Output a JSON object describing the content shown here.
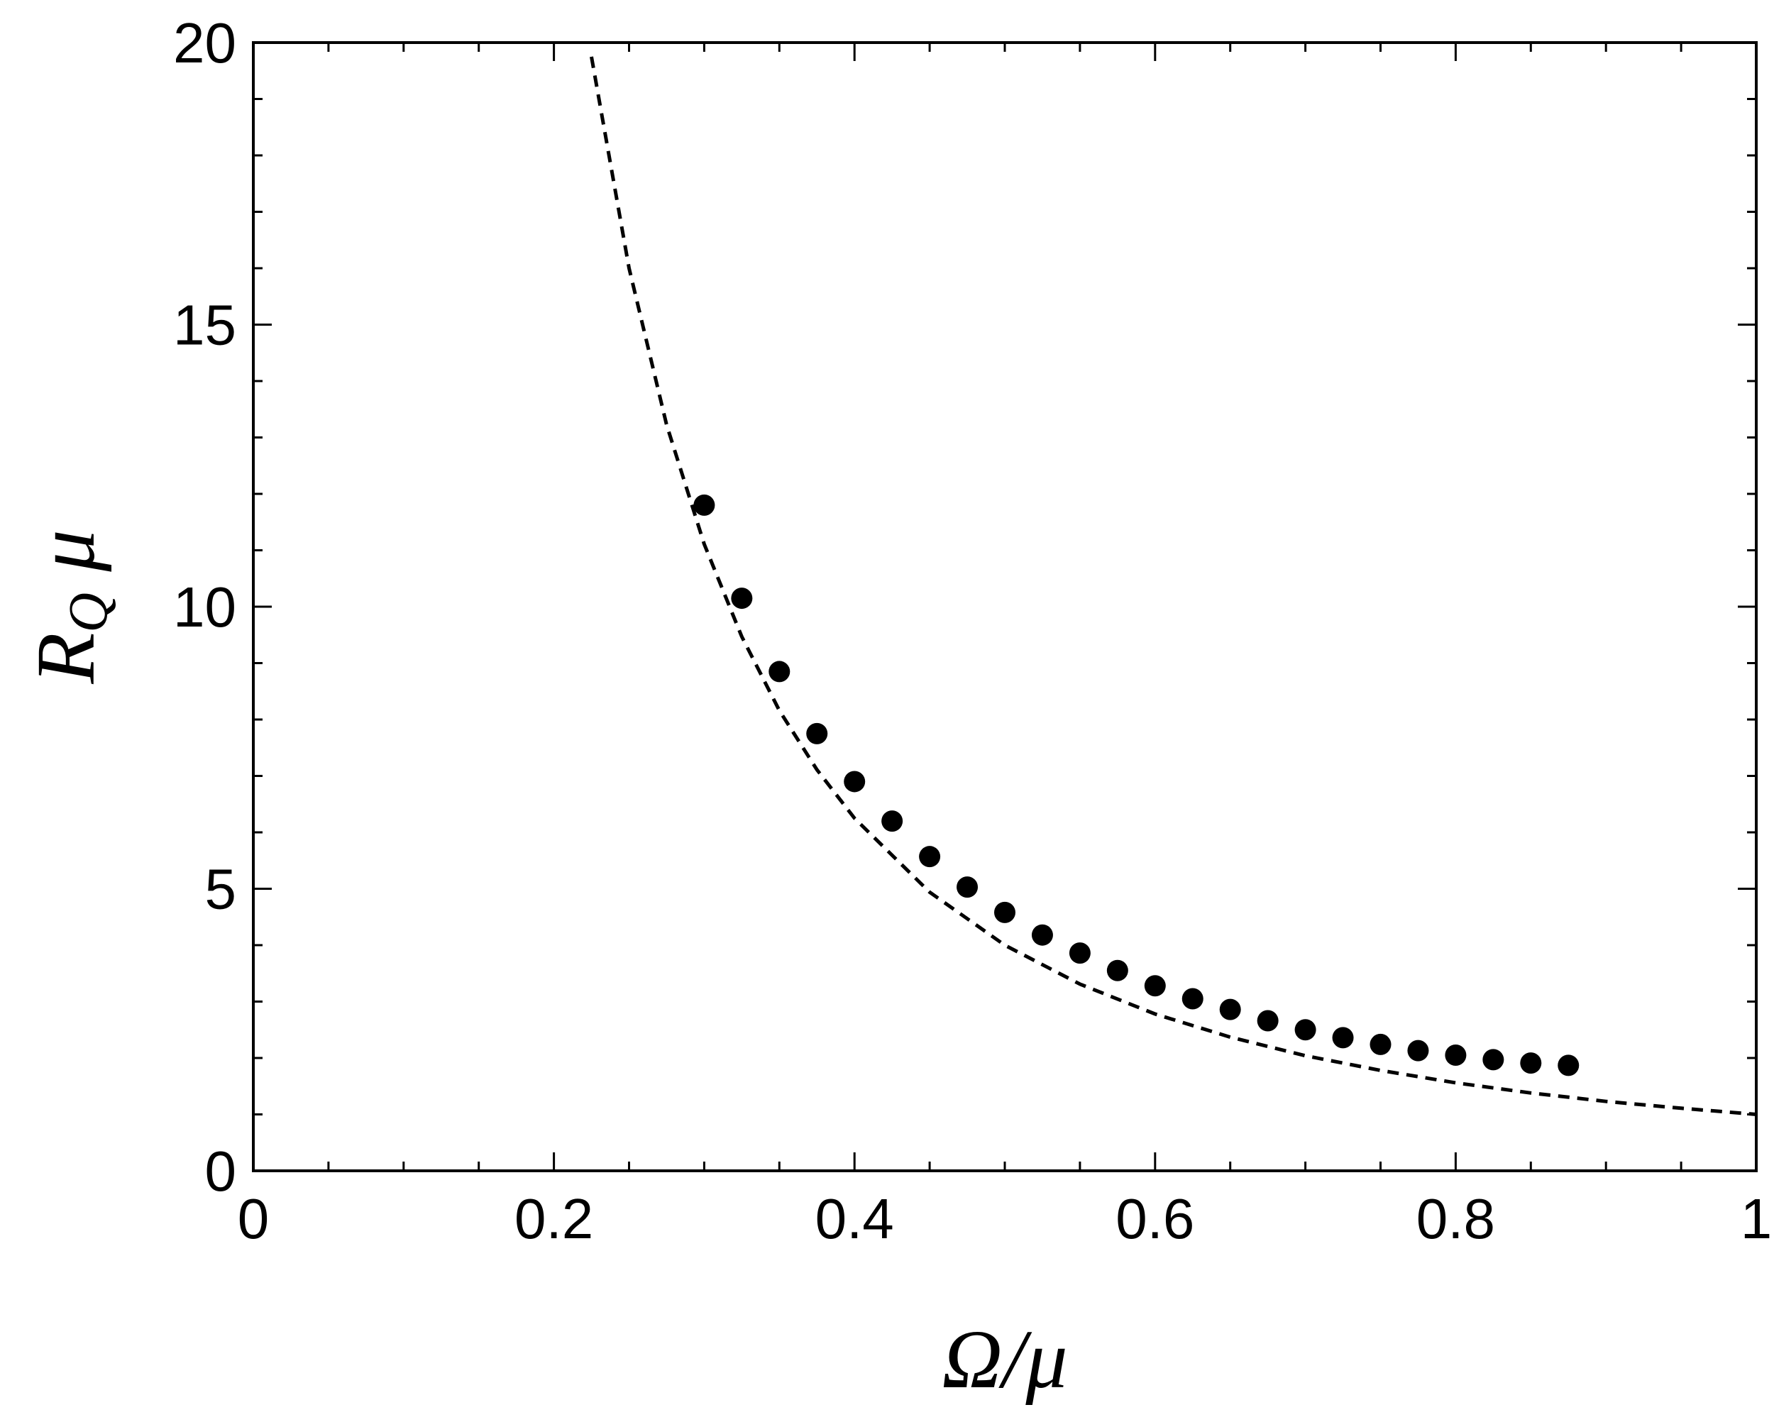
{
  "chart_data": {
    "type": "scatter",
    "title": "",
    "xlabel": "Ω/μ",
    "ylabel_main": "R",
    "ylabel_sub": "Q",
    "ylabel_tail": " μ",
    "xlim": [
      0,
      1
    ],
    "ylim": [
      0,
      20
    ],
    "x_ticks": [
      0,
      0.2,
      0.4,
      0.6,
      0.8,
      1
    ],
    "x_tick_labels": [
      "0",
      "0.2",
      "0.4",
      "0.6",
      "0.8",
      "1"
    ],
    "y_ticks": [
      0,
      5,
      10,
      15,
      20
    ],
    "y_tick_labels": [
      "0",
      "5",
      "10",
      "15",
      "20"
    ],
    "grid": false,
    "series": [
      {
        "style": "markers",
        "color": "#000000",
        "x": [
          0.3,
          0.325,
          0.35,
          0.375,
          0.4,
          0.425,
          0.45,
          0.475,
          0.5,
          0.525,
          0.55,
          0.575,
          0.6,
          0.625,
          0.65,
          0.675,
          0.7,
          0.725,
          0.75,
          0.775,
          0.8,
          0.825,
          0.85,
          0.875
        ],
        "y": [
          11.8,
          10.15,
          8.85,
          7.75,
          6.9,
          6.2,
          5.57,
          5.03,
          4.58,
          4.18,
          3.86,
          3.55,
          3.28,
          3.05,
          2.86,
          2.66,
          2.5,
          2.36,
          2.24,
          2.13,
          2.05,
          1.97,
          1.91,
          1.87
        ]
      },
      {
        "style": "dashed-line",
        "color": "#000000",
        "x": [
          0.225,
          0.25,
          0.275,
          0.3,
          0.325,
          0.35,
          0.375,
          0.4,
          0.45,
          0.5,
          0.55,
          0.6,
          0.65,
          0.7,
          0.75,
          0.8,
          0.85,
          0.9,
          0.95,
          1.0
        ],
        "y": [
          19.75,
          16.0,
          13.22,
          11.11,
          9.47,
          8.16,
          7.11,
          6.25,
          4.94,
          4.0,
          3.31,
          2.78,
          2.37,
          2.04,
          1.78,
          1.56,
          1.38,
          1.23,
          1.11,
          1.0
        ]
      }
    ]
  }
}
